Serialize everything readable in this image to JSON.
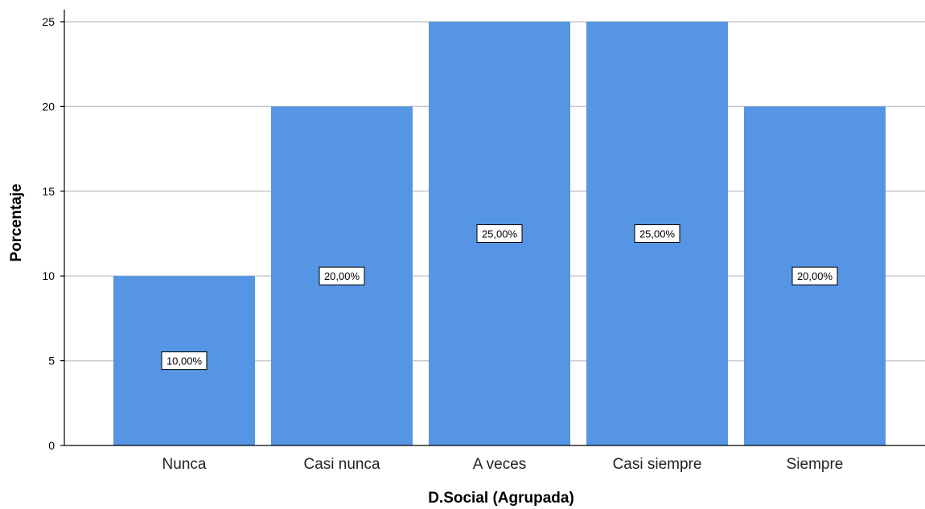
{
  "chart_data": {
    "type": "bar",
    "title": "",
    "xlabel": "D.Social  (Agrupada)",
    "ylabel": "Porcentaje",
    "categories": [
      "Nunca",
      "Casi nunca",
      "A veces",
      "Casi siempre",
      "Siempre"
    ],
    "values": [
      10,
      20,
      25,
      25,
      20
    ],
    "data_labels": [
      "10,00%",
      "20,00%",
      "25,00%",
      "25,00%",
      "20,00%"
    ],
    "ylim": [
      0,
      25
    ],
    "yticks": [
      0,
      5,
      10,
      15,
      20,
      25
    ],
    "grid": true,
    "legend": "none",
    "colors": {
      "bar": "#5595e3",
      "grid": "#c8c8c8",
      "axis": "#000000"
    }
  }
}
